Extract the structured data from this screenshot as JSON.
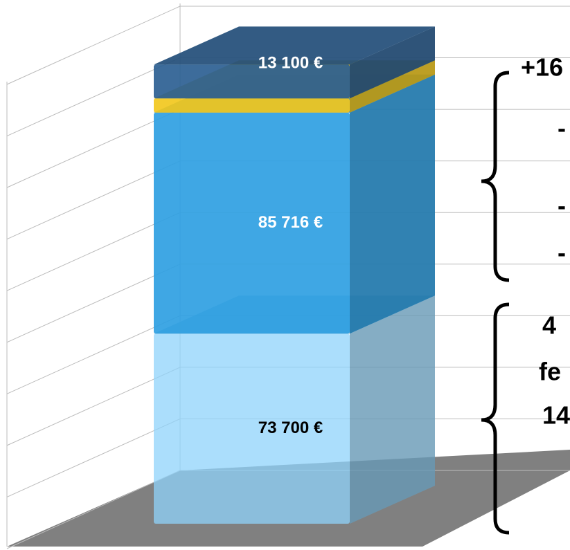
{
  "chart_data": {
    "type": "bar3d_stacked",
    "categories": [
      ""
    ],
    "series": [
      {
        "name": "73 700 €",
        "color": "#8fd3fb",
        "values": [
          73700
        ],
        "value_labels": [
          "73 700 €"
        ],
        "label_color": "#000000"
      },
      {
        "name": "85 716 €",
        "color": "#2f9fe2",
        "values": [
          85716
        ],
        "value_labels": [
          "85 716 €"
        ],
        "label_color": "#ffffff"
      },
      {
        "name": "",
        "color": "#f2c81e",
        "values": [
          5500
        ]
      },
      {
        "name": "13 100 €",
        "color": "#2c5f93",
        "values": [
          13100
        ],
        "value_labels": [
          "13 100 €"
        ],
        "label_color": "#ffffff"
      }
    ],
    "ylim": [
      0,
      180000
    ],
    "yticks": [
      0,
      20000,
      40000,
      60000,
      80000,
      100000,
      120000,
      140000,
      160000,
      180000
    ],
    "grid": true,
    "annotations": [
      "+16",
      "-",
      "-",
      "-",
      "4",
      "fe",
      "14"
    ]
  }
}
